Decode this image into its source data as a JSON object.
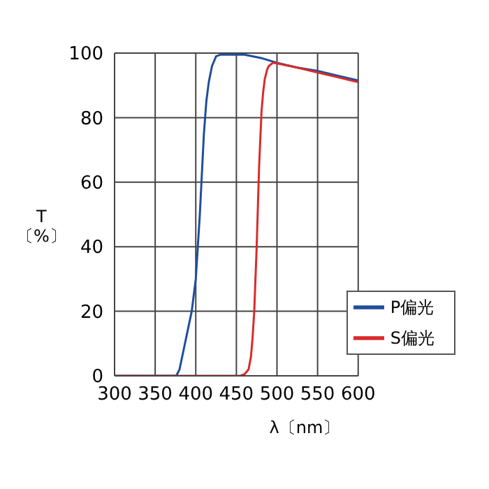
{
  "chart_data": {
    "type": "line",
    "xlabel": "λ〔nm〕",
    "ylabel": "T\n〔%〕",
    "xlim": [
      300,
      600
    ],
    "xticks": [
      300,
      350,
      400,
      450,
      500,
      550,
      600
    ],
    "ylim": [
      0,
      100
    ],
    "yticks": [
      0,
      20,
      40,
      60,
      80,
      100
    ],
    "grid": true,
    "legend": "bottom right",
    "marker": "none",
    "line_style": "solid",
    "series": [
      {
        "name": "P偏光",
        "color": "#1f4e9c",
        "x": [
          300,
          376,
          380,
          385,
          390,
          395,
          400,
          405,
          410,
          413,
          416,
          420,
          425,
          430,
          440,
          460,
          480,
          500,
          525,
          550,
          575,
          600
        ],
        "values": [
          0,
          0,
          2,
          8,
          14,
          20,
          30,
          50,
          75,
          85,
          91,
          96,
          99,
          99.5,
          99.5,
          99.5,
          98.5,
          97,
          95.5,
          94.5,
          93,
          91.5
        ]
      },
      {
        "name": "S偏光",
        "color": "#d92b2b",
        "x": [
          300,
          455,
          460,
          465,
          468,
          470,
          472,
          475,
          478,
          481,
          483,
          485,
          488,
          490,
          495,
          500,
          525,
          550,
          575,
          600
        ],
        "values": [
          0,
          0,
          0.5,
          2,
          6,
          12,
          20,
          40,
          65,
          82,
          88,
          92,
          95,
          96,
          97,
          96.8,
          95.5,
          94,
          92.5,
          91
        ]
      }
    ]
  }
}
